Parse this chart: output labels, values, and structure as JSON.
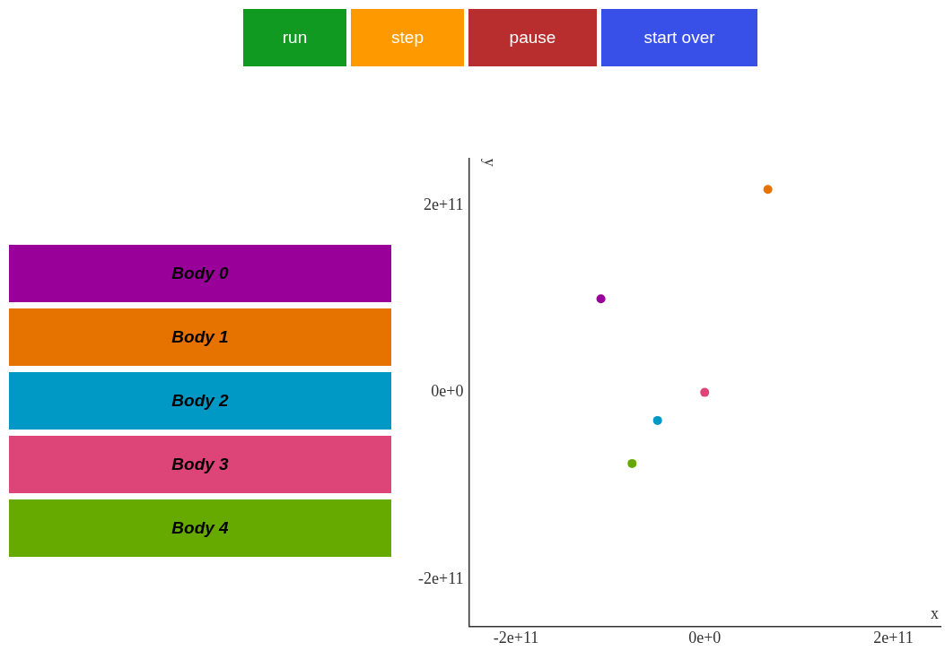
{
  "chart_data": {
    "type": "scatter",
    "xlabel": "x",
    "ylabel": "y",
    "annotations": [
      "run",
      "step",
      "pause",
      "start over"
    ],
    "xlim": [
      -250000000000.0,
      250000000000.0
    ],
    "ylim": [
      -250000000000.0,
      250000000000.0
    ],
    "xticks": [
      {
        "value": -200000000000.0,
        "label": "-2e+11"
      },
      {
        "value": 0,
        "label": "0e+0"
      },
      {
        "value": 200000000000.0,
        "label": "2e+11"
      }
    ],
    "yticks": [
      {
        "value": -200000000000.0,
        "label": "-2e+11"
      },
      {
        "value": 0,
        "label": "0e+0"
      },
      {
        "value": 200000000000.0,
        "label": "2e+11"
      }
    ],
    "grid": false,
    "legend": "left",
    "marker": "circle",
    "series": [
      {
        "name": "Body 0",
        "color": "#990099",
        "x": [
          -110000000000.0
        ],
        "values": [
          100000000000.0
        ]
      },
      {
        "name": "Body 1",
        "color": "#e67300",
        "x": [
          67000000000.0
        ],
        "values": [
          217000000000.0
        ]
      },
      {
        "name": "Body 2",
        "color": "#0099c6",
        "x": [
          -50000000000.0
        ],
        "values": [
          -30000000000.0
        ]
      },
      {
        "name": "Body 3",
        "color": "#dd4477",
        "x": [
          0
        ],
        "values": [
          0
        ]
      },
      {
        "name": "Body 4",
        "color": "#66aa00",
        "x": [
          -77000000000.0
        ],
        "values": [
          -76000000000.0
        ]
      }
    ]
  }
}
